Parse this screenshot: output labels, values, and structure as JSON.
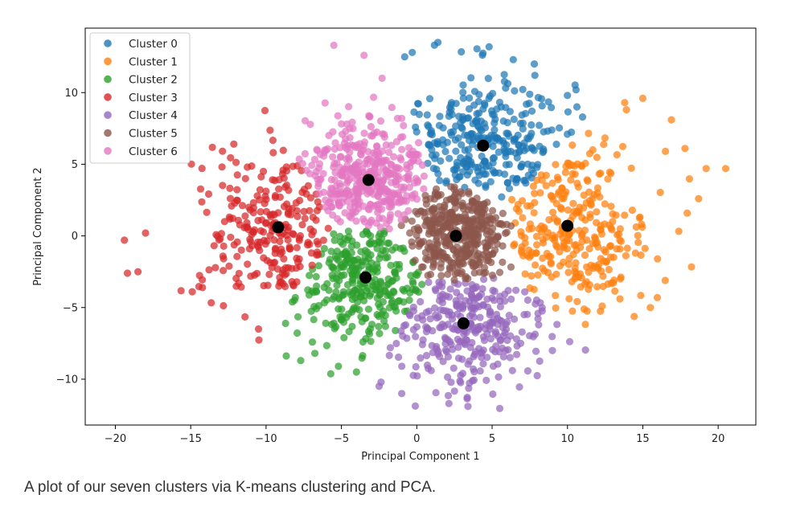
{
  "caption": "A plot of our seven clusters via K-means clustering and PCA.",
  "chart_data": {
    "type": "scatter",
    "title": "",
    "xlabel": "Principal Component 1",
    "ylabel": "Principal Component 2",
    "xlim": [
      -22,
      22.5
    ],
    "ylim": [
      -13.2,
      14.5
    ],
    "xticks": [
      -20,
      -15,
      -10,
      -5,
      0,
      5,
      10,
      15,
      20
    ],
    "yticks": [
      -10,
      -5,
      0,
      5,
      10
    ],
    "xtick_labels": [
      "−20",
      "−15",
      "−10",
      "−5",
      "0",
      "5",
      "10",
      "15",
      "20"
    ],
    "ytick_labels": [
      "−10",
      "−5",
      "0",
      "5",
      "10"
    ],
    "grid": false,
    "legend_position": "top-left",
    "series": [
      {
        "name": "Cluster 0",
        "color": "#1f77b4",
        "center": [
          4.4,
          6.3
        ],
        "spread": [
          3.0,
          2.5
        ],
        "count": 300,
        "outliers": [
          [
            1.4,
            13.5
          ],
          [
            -0.8,
            12.5
          ],
          [
            4.8,
            13.2
          ],
          [
            -0.3,
            12.8
          ],
          [
            6.4,
            12.3
          ],
          [
            7.8,
            12.0
          ],
          [
            10.0,
            9.8
          ],
          [
            11.0,
            8.3
          ]
        ]
      },
      {
        "name": "Cluster 1",
        "color": "#ff7f0e",
        "center": [
          10.0,
          0.7
        ],
        "spread": [
          2.8,
          3.2
        ],
        "count": 300,
        "outliers": [
          [
            13.8,
            9.3
          ],
          [
            15.0,
            9.6
          ],
          [
            16.9,
            8.1
          ],
          [
            17.8,
            6.1
          ],
          [
            19.2,
            4.7
          ],
          [
            20.5,
            4.7
          ],
          [
            18.7,
            2.6
          ],
          [
            15.5,
            -5.0
          ],
          [
            16.5,
            5.9
          ]
        ]
      },
      {
        "name": "Cluster 2",
        "color": "#2ca02c",
        "center": [
          -3.4,
          -2.9
        ],
        "spread": [
          2.4,
          2.4
        ],
        "count": 300,
        "outliers": [
          [
            -7.7,
            -8.7
          ],
          [
            -5.2,
            -9.1
          ],
          [
            -4.0,
            -9.5
          ]
        ]
      },
      {
        "name": "Cluster 3",
        "color": "#d62728",
        "center": [
          -9.2,
          0.6
        ],
        "spread": [
          2.6,
          2.6
        ],
        "count": 250,
        "outliers": [
          [
            -19.4,
            -0.3
          ],
          [
            -18.0,
            0.2
          ],
          [
            -19.2,
            -2.6
          ],
          [
            -18.5,
            -2.5
          ],
          [
            -14.9,
            -3.9
          ],
          [
            -10.5,
            -6.5
          ]
        ]
      },
      {
        "name": "Cluster 4",
        "color": "#9467bd",
        "center": [
          3.1,
          -6.1
        ],
        "spread": [
          3.0,
          2.3
        ],
        "count": 300,
        "outliers": [
          [
            3.4,
            -11.9
          ],
          [
            -1.0,
            -11.0
          ],
          [
            9.0,
            -8.0
          ],
          [
            -2.5,
            -10.5
          ]
        ]
      },
      {
        "name": "Cluster 5",
        "color": "#8c564b",
        "center": [
          2.6,
          0.0
        ],
        "spread": [
          1.9,
          1.8
        ],
        "count": 400,
        "outliers": []
      },
      {
        "name": "Cluster 6",
        "color": "#e377c2",
        "center": [
          -3.2,
          3.9
        ],
        "spread": [
          2.2,
          2.1
        ],
        "count": 400,
        "outliers": [
          [
            -5.5,
            13.3
          ],
          [
            -3.5,
            12.6
          ],
          [
            -2.3,
            11.0
          ]
        ]
      }
    ],
    "centroids": {
      "color": "#000000",
      "points": [
        [
          4.4,
          6.3
        ],
        [
          10.0,
          0.7
        ],
        [
          -3.4,
          -2.9
        ],
        [
          -9.2,
          0.6
        ],
        [
          3.1,
          -6.1
        ],
        [
          2.6,
          0.0
        ],
        [
          -3.2,
          3.9
        ]
      ]
    }
  }
}
